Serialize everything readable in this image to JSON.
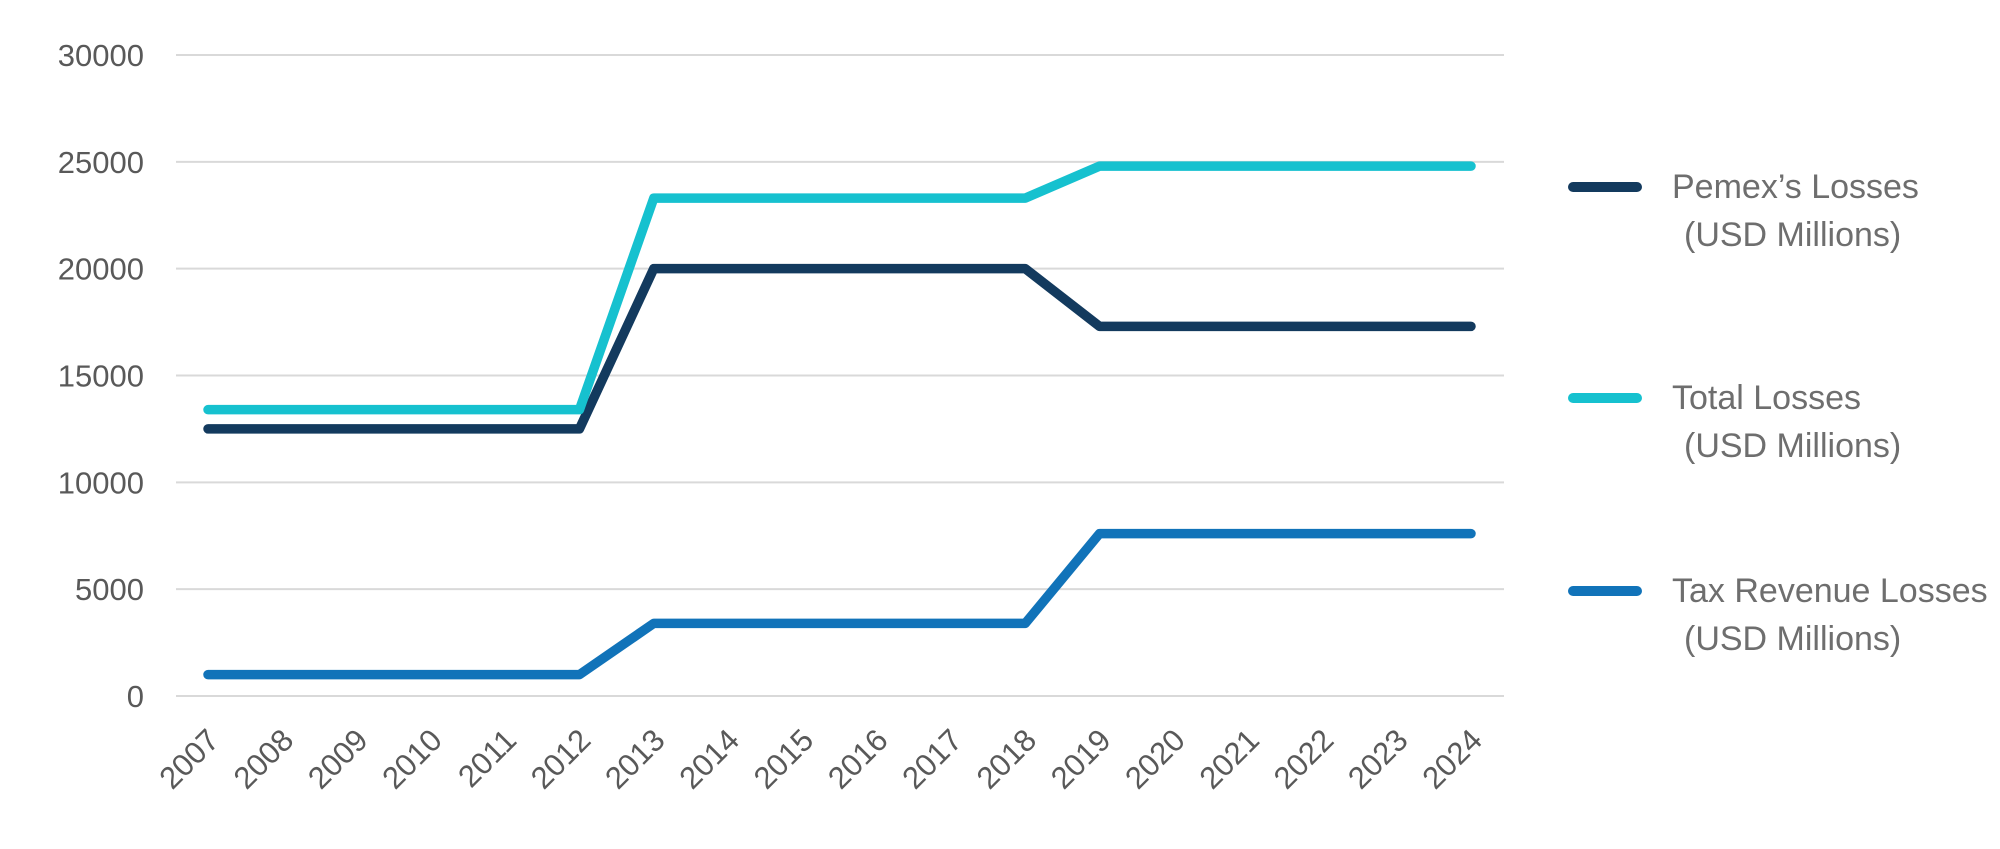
{
  "chart_data": {
    "type": "line",
    "title": "",
    "xlabel": "",
    "ylabel": "",
    "x": [
      "2007",
      "2008",
      "2009",
      "2010",
      "2011",
      "2012",
      "2013",
      "2014",
      "2015",
      "2016",
      "2017",
      "2018",
      "2019",
      "2020",
      "2021",
      "2022",
      "2023",
      "2024"
    ],
    "series": [
      {
        "name": "Pemex’s Losses",
        "unit_label": "(USD Millions)",
        "color": "#133a5e",
        "values": [
          12500,
          12500,
          12500,
          12500,
          12500,
          12500,
          20000,
          20000,
          20000,
          20000,
          20000,
          20000,
          17300,
          17300,
          17300,
          17300,
          17300,
          17300
        ]
      },
      {
        "name": "Total Losses",
        "unit_label": "(USD Millions)",
        "color": "#16c1cf",
        "values": [
          13400,
          13400,
          13400,
          13400,
          13400,
          13400,
          23300,
          23300,
          23300,
          23300,
          23300,
          23300,
          24800,
          24800,
          24800,
          24800,
          24800,
          24800
        ]
      },
      {
        "name": "Tax Revenue Losses",
        "unit_label": "(USD Millions)",
        "color": "#1173b9",
        "values": [
          1000,
          1000,
          1000,
          1000,
          1000,
          1000,
          3400,
          3400,
          3400,
          3400,
          3400,
          3400,
          7600,
          7600,
          7600,
          7600,
          7600,
          7600
        ]
      }
    ],
    "ylim": [
      0,
      30000
    ],
    "yticks": [
      0,
      5000,
      10000,
      15000,
      20000,
      25000,
      30000
    ],
    "grid": true,
    "legend_position": "right"
  },
  "colors": {
    "background": "#ffffff",
    "gridline": "#d9d9d9",
    "axis_text": "#595959",
    "legend_text": "#6e6e6e"
  }
}
